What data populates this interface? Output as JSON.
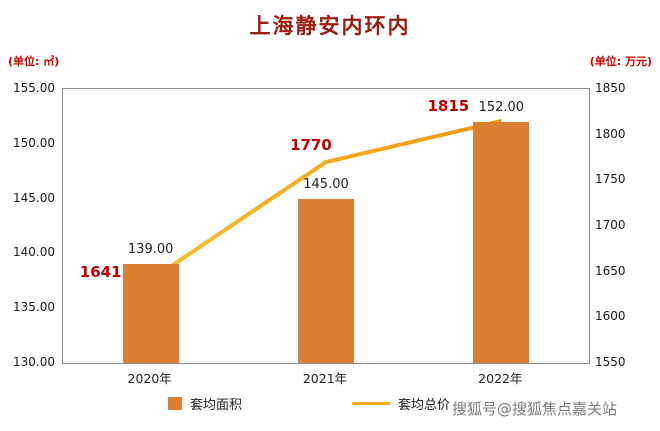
{
  "page": {
    "title": "上海静安内环内",
    "left_unit": "(单位: ㎡)",
    "right_unit": "(单位: 万元)",
    "watermark": "搜狐号@搜狐焦点嘉关站"
  },
  "chart_data": {
    "type": "bar",
    "subtype": "bar-line-combo",
    "title": "上海静安内环内",
    "categories": [
      "2020年",
      "2021年",
      "2022年"
    ],
    "series": [
      {
        "name": "套均面积",
        "kind": "bar",
        "axis": "left",
        "unit": "㎡",
        "values": [
          139.0,
          145.0,
          152.0
        ],
        "color": "#DC7E30",
        "label_color": "#222222"
      },
      {
        "name": "套均总价",
        "kind": "line",
        "axis": "right",
        "unit": "万元",
        "values": [
          1641,
          1770,
          1815
        ],
        "color": "#F5A81C",
        "label_color": "#C00000"
      }
    ],
    "left_axis": {
      "title": "单位: ㎡",
      "min": 130,
      "max": 155,
      "step": 5,
      "decimals": 2
    },
    "right_axis": {
      "title": "单位: 万元",
      "min": 1550,
      "max": 1850,
      "step": 50,
      "decimals": 0
    },
    "grid": false,
    "legend_position": "bottom"
  }
}
